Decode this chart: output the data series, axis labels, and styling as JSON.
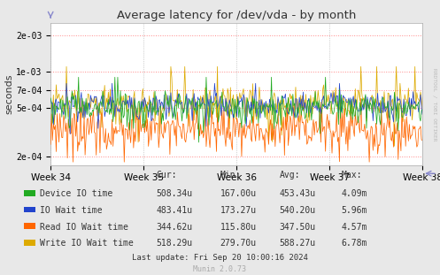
{
  "title": "Average latency for /dev/vda - by month",
  "ylabel": "seconds",
  "xtick_labels": [
    "Week 34",
    "Week 35",
    "Week 36",
    "Week 37",
    "Week 38"
  ],
  "ytick_vals": [
    0.0002,
    0.0005,
    0.0007,
    0.001,
    0.002
  ],
  "ytick_labels": [
    "2e-04",
    "5e-04",
    "7e-04",
    "1e-03",
    "2e-03"
  ],
  "background_color": "#e8e8e8",
  "plot_bg_color": "#ffffff",
  "grid_color_h": "#ff8888",
  "grid_color_v": "#aaaaaa",
  "colors": {
    "green": "#22aa22",
    "blue": "#2244cc",
    "orange": "#ff6600",
    "yellow": "#ddaa00"
  },
  "table_headers": [
    "Cur:",
    "Min:",
    "Avg:",
    "Max:"
  ],
  "table_rows": [
    [
      "Device IO time",
      "508.34u",
      "167.00u",
      "453.43u",
      "4.09m"
    ],
    [
      "IO Wait time",
      "483.41u",
      "173.27u",
      "540.20u",
      "5.96m"
    ],
    [
      "Read IO Wait time",
      "344.62u",
      "115.80u",
      "347.50u",
      "4.57m"
    ],
    [
      "Write IO Wait time",
      "518.29u",
      "279.70u",
      "588.27u",
      "6.78m"
    ]
  ],
  "last_update": "Last update: Fri Sep 20 10:00:16 2024",
  "munin_version": "Munin 2.0.73",
  "rrdtool_label": "RRDTOOL / TOBI OETIKER",
  "n_points": 400,
  "seed": 42
}
